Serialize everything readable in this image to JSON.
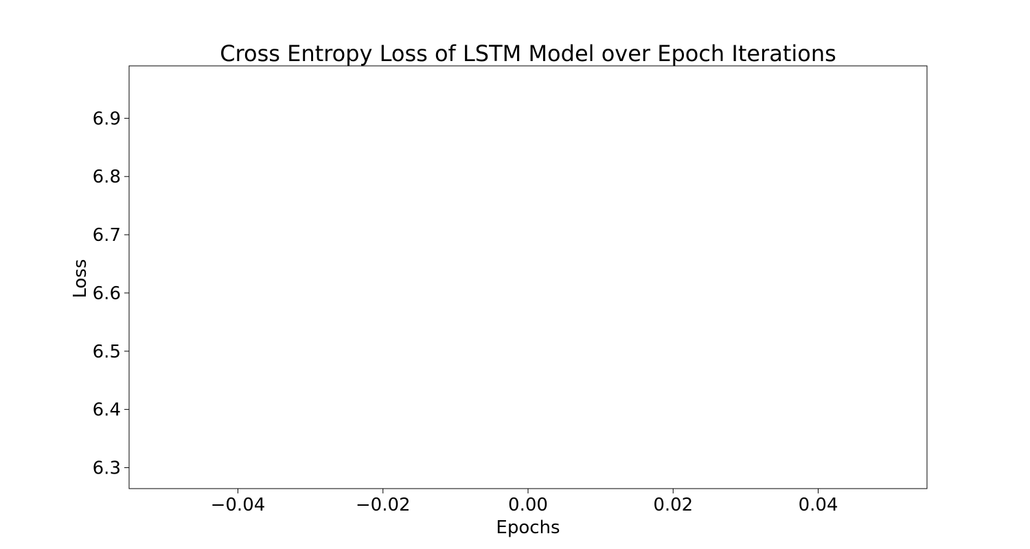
{
  "chart_data": {
    "type": "line",
    "title": "Cross Entropy Loss of LSTM Model over Epoch Iterations",
    "xlabel": "Epochs",
    "ylabel": "Loss",
    "xlim": [
      -0.055,
      0.055
    ],
    "ylim": [
      6.264,
      6.99
    ],
    "xticks": [
      -0.04,
      -0.02,
      0.0,
      0.02,
      0.04
    ],
    "xtick_labels": [
      "−0.04",
      "−0.02",
      "0.00",
      "0.02",
      "0.04"
    ],
    "yticks": [
      6.3,
      6.4,
      6.5,
      6.6,
      6.7,
      6.8,
      6.9
    ],
    "ytick_labels": [
      "6.3",
      "6.4",
      "6.5",
      "6.6",
      "6.7",
      "6.8",
      "6.9"
    ],
    "grid": false,
    "series": [
      {
        "values": []
      }
    ]
  }
}
